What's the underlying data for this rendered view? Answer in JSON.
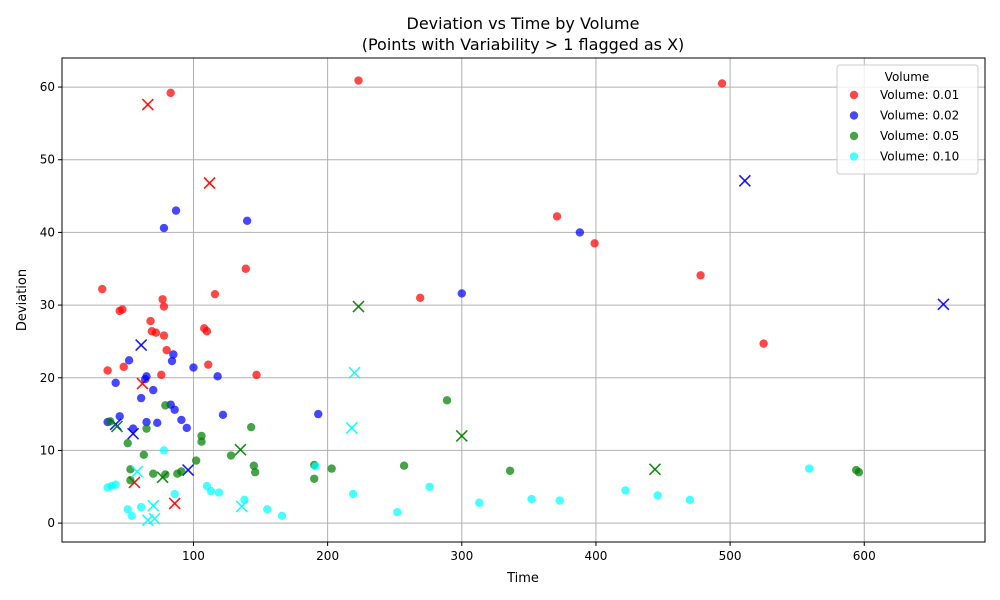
{
  "chart_data": {
    "type": "scatter",
    "title": "Deviation vs Time by Volume",
    "subtitle": "(Points with Variability > 1 flagged as X)",
    "xlabel": "Time",
    "ylabel": "Deviation",
    "xlim": [
      2,
      690
    ],
    "ylim": [
      -2.6,
      64
    ],
    "xticks": [
      100,
      200,
      300,
      400,
      500,
      600
    ],
    "yticks": [
      0,
      10,
      20,
      30,
      40,
      50,
      60
    ],
    "grid": true,
    "legend_title": "Volume",
    "legend_position": "top-right",
    "series": [
      {
        "name": "Volume: 0.01",
        "color": "#ff0000",
        "points": [
          [
            32,
            32.2
          ],
          [
            36,
            21
          ],
          [
            45,
            29.2
          ],
          [
            47,
            29.4
          ],
          [
            48,
            21.5
          ],
          [
            68,
            27.8
          ],
          [
            69,
            26.4
          ],
          [
            72,
            26.2
          ],
          [
            76,
            20.4
          ],
          [
            77,
            30.8
          ],
          [
            78,
            29.8
          ],
          [
            78,
            25.8
          ],
          [
            80,
            23.8
          ],
          [
            83,
            59.2
          ],
          [
            108,
            26.8
          ],
          [
            110,
            26.4
          ],
          [
            111,
            21.8
          ],
          [
            116,
            31.5
          ],
          [
            139,
            35
          ],
          [
            147,
            20.4
          ],
          [
            223,
            60.9
          ],
          [
            269,
            31
          ],
          [
            371,
            42.2
          ],
          [
            399,
            38.5
          ],
          [
            478,
            34.1
          ],
          [
            494,
            60.5
          ],
          [
            525,
            24.7
          ]
        ],
        "flagged": [
          [
            66,
            57.6
          ],
          [
            112,
            46.8
          ],
          [
            62,
            19.2
          ],
          [
            56,
            5.6
          ],
          [
            86,
            2.7
          ]
        ]
      },
      {
        "name": "Volume: 0.02",
        "color": "#0000ff",
        "points": [
          [
            36,
            13.9
          ],
          [
            42,
            19.3
          ],
          [
            45,
            14.7
          ],
          [
            52,
            22.4
          ],
          [
            55,
            13
          ],
          [
            61,
            17.2
          ],
          [
            64,
            19.8
          ],
          [
            65,
            20.2
          ],
          [
            65,
            13.9
          ],
          [
            70,
            18.3
          ],
          [
            73,
            13.8
          ],
          [
            78,
            40.6
          ],
          [
            83,
            16.3
          ],
          [
            84,
            22.3
          ],
          [
            85,
            23.2
          ],
          [
            86,
            15.6
          ],
          [
            87,
            43
          ],
          [
            91,
            14.2
          ],
          [
            95,
            13.1
          ],
          [
            100,
            21.4
          ],
          [
            118,
            20.2
          ],
          [
            122,
            14.9
          ],
          [
            140,
            41.6
          ],
          [
            193,
            15
          ],
          [
            300,
            31.6
          ],
          [
            388,
            40
          ]
        ],
        "flagged": [
          [
            61,
            24.5
          ],
          [
            42,
            13.6
          ],
          [
            55,
            12.3
          ],
          [
            96,
            7.3
          ],
          [
            511,
            47.1
          ],
          [
            659,
            30.1
          ]
        ]
      },
      {
        "name": "Volume: 0.05",
        "color": "#008000",
        "points": [
          [
            38,
            14
          ],
          [
            51,
            11
          ],
          [
            53,
            7.4
          ],
          [
            53,
            5.9
          ],
          [
            63,
            9.4
          ],
          [
            65,
            13
          ],
          [
            70,
            6.8
          ],
          [
            79,
            16.2
          ],
          [
            79,
            6.7
          ],
          [
            88,
            6.8
          ],
          [
            91,
            7.1
          ],
          [
            102,
            8.6
          ],
          [
            106,
            12
          ],
          [
            106,
            11.2
          ],
          [
            128,
            9.3
          ],
          [
            143,
            13.2
          ],
          [
            145,
            7.9
          ],
          [
            146,
            7
          ],
          [
            190,
            8
          ],
          [
            190,
            6.1
          ],
          [
            203,
            7.5
          ],
          [
            257,
            7.9
          ],
          [
            289,
            16.9
          ],
          [
            336,
            7.2
          ],
          [
            594,
            7.3
          ],
          [
            596,
            7
          ]
        ],
        "flagged": [
          [
            43,
            13.3
          ],
          [
            77,
            6.3
          ],
          [
            135,
            10.1
          ],
          [
            223,
            29.8
          ],
          [
            300,
            12
          ],
          [
            444,
            7.4
          ]
        ]
      },
      {
        "name": "Volume: 0.10",
        "color": "#00ffff",
        "points": [
          [
            36,
            4.9
          ],
          [
            39,
            5.1
          ],
          [
            42,
            5.3
          ],
          [
            51,
            1.9
          ],
          [
            54,
            1.0
          ],
          [
            61,
            2.2
          ],
          [
            78,
            10
          ],
          [
            86,
            4.0
          ],
          [
            110,
            5.1
          ],
          [
            113,
            4.4
          ],
          [
            119,
            4.2
          ],
          [
            138,
            3.2
          ],
          [
            155,
            1.9
          ],
          [
            166,
            1.0
          ],
          [
            191,
            7.8
          ],
          [
            219,
            4
          ],
          [
            252,
            1.5
          ],
          [
            276,
            5
          ],
          [
            313,
            2.8
          ],
          [
            352,
            3.3
          ],
          [
            373,
            3.1
          ],
          [
            422,
            4.5
          ],
          [
            446,
            3.8
          ],
          [
            470,
            3.2
          ],
          [
            559,
            7.5
          ]
        ],
        "flagged": [
          [
            58,
            7.1
          ],
          [
            66,
            0.4
          ],
          [
            70,
            2.4
          ],
          [
            71,
            0.6
          ],
          [
            136,
            2.3
          ],
          [
            218,
            13.1
          ],
          [
            220,
            20.7
          ]
        ]
      }
    ]
  }
}
